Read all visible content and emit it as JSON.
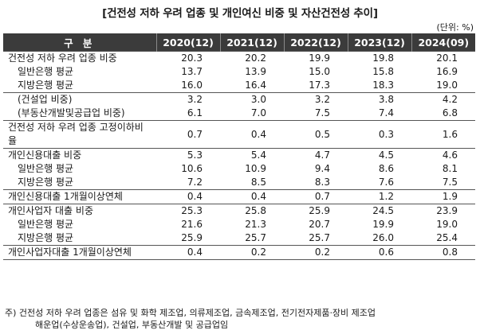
{
  "title": "[건전성 저하 우려 업종 및 개인여신 비중 및 자산건전성 추이]",
  "unit": "(단위: %)",
  "header": {
    "label": "구 분",
    "years": [
      "2020(12)",
      "2021(12)",
      "2022(12)",
      "2023(12)",
      "2024(09)"
    ]
  },
  "rows": [
    {
      "label": "건전성 저하 우려 업종 비중",
      "values": [
        "20.3",
        "20.2",
        "19.9",
        "19.8",
        "20.1"
      ]
    },
    {
      "label": "일반은행 평균",
      "values": [
        "13.7",
        "13.9",
        "15.0",
        "15.8",
        "16.9"
      ]
    },
    {
      "label": "지방은행 평균",
      "values": [
        "16.0",
        "16.4",
        "17.3",
        "18.3",
        "19.0"
      ]
    },
    {
      "label": "(건설업 비중)",
      "values": [
        "3.2",
        "3.0",
        "3.2",
        "3.8",
        "4.2"
      ]
    },
    {
      "label": "(부동산개발및공급업 비중)",
      "values": [
        "6.1",
        "7.0",
        "7.5",
        "7.4",
        "6.8"
      ]
    },
    {
      "label": "건전성 저하 우려 업종 고정이하비율",
      "values": [
        "0.7",
        "0.4",
        "0.5",
        "0.3",
        "1.6"
      ]
    },
    {
      "label": "개인신용대출 비중",
      "values": [
        "5.3",
        "5.4",
        "4.7",
        "4.5",
        "4.6"
      ]
    },
    {
      "label": "일반은행 평균",
      "values": [
        "10.6",
        "10.9",
        "9.4",
        "8.6",
        "8.1"
      ]
    },
    {
      "label": "지방은행 평균",
      "values": [
        "7.2",
        "8.5",
        "8.3",
        "7.6",
        "7.5"
      ]
    },
    {
      "label": "개인신용대출 1개월이상연체",
      "values": [
        "0.4",
        "0.4",
        "0.7",
        "1.2",
        "1.9"
      ]
    },
    {
      "label": "개인사업자 대출 비중",
      "values": [
        "25.3",
        "25.8",
        "25.9",
        "24.5",
        "23.9"
      ]
    },
    {
      "label": "일반은행 평균",
      "values": [
        "21.6",
        "21.3",
        "20.7",
        "19.9",
        "19.0"
      ]
    },
    {
      "label": "지방은행 평균",
      "values": [
        "25.9",
        "25.7",
        "25.7",
        "26.0",
        "25.4"
      ]
    },
    {
      "label": "개인사업자대출 1개월이상연체",
      "values": [
        "0.4",
        "0.2",
        "0.2",
        "0.6",
        "0.8"
      ]
    }
  ],
  "footnote": {
    "line1": "주) 건전성 저하 우려 업종은 섬유 및 화학 제조업, 의류제조업, 금속제조업, 전기전자제품·장비 제조업",
    "line2": "해운업(수상운송업), 건설업, 부동산개발 및 공급업임"
  }
}
